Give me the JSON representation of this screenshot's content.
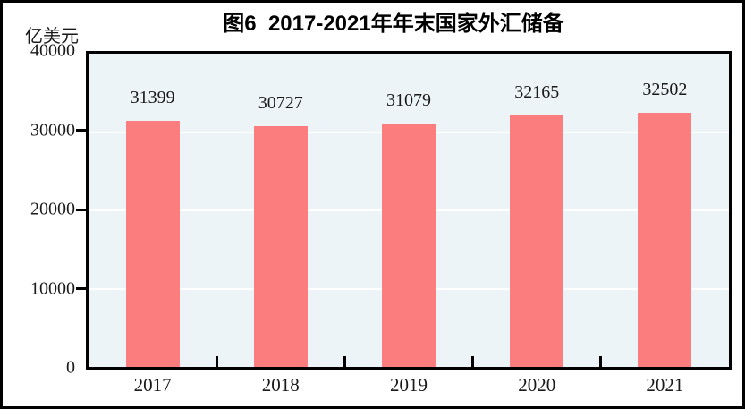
{
  "figure": {
    "title": "图6  2017-2021年年末国家外汇储备",
    "unit_label": "亿美元"
  },
  "chart_data": {
    "type": "bar",
    "title": "图6  2017-2021年年末国家外汇储备",
    "xlabel": "",
    "ylabel": "亿美元",
    "categories": [
      "2017",
      "2018",
      "2019",
      "2020",
      "2021"
    ],
    "values": [
      31399,
      30727,
      31079,
      32165,
      32502
    ],
    "bar_labels": [
      "31399",
      "30727",
      "31079",
      "32165",
      "32502"
    ],
    "ylim": [
      0,
      40000
    ],
    "yticks": [
      0,
      10000,
      20000,
      30000,
      40000
    ],
    "gridline_values": [
      10000,
      20000,
      30000
    ],
    "grid": "horizontal",
    "legend": "none",
    "colors": {
      "bar": "#FC7D7D",
      "plot_background": "#EDF4F7",
      "gridline": "#FFFFFF",
      "axis": "#000000",
      "text": "#1A1A1A",
      "outer_frame": "#000000",
      "page_background": "#FFFFFF"
    }
  }
}
